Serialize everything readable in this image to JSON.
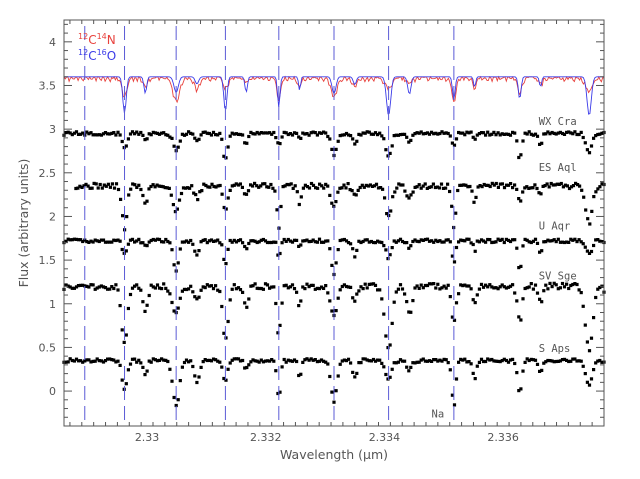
{
  "chart_data": {
    "type": "line",
    "title": "",
    "xlabel": "Wavelength (μm)",
    "ylabel": "Flux (arbitrary units)",
    "xlim": [
      2.3286,
      2.3377
    ],
    "ylim": [
      -0.4,
      4.25
    ],
    "x_ticks": [
      2.33,
      2.332,
      2.334,
      2.336
    ],
    "x_tick_labels": [
      "2.33",
      "2.332",
      "2.334",
      "2.336"
    ],
    "y_ticks": [
      0,
      0.5,
      1,
      1.5,
      2,
      2.5,
      3,
      3.5,
      4
    ],
    "y_tick_labels": [
      "0",
      "0.5",
      "1",
      "1.5",
      "2",
      "2.5",
      "3",
      "3.5",
      "4"
    ],
    "grid": false,
    "reference_lines": [
      2.32895,
      2.32962,
      2.33049,
      2.33132,
      2.33222,
      2.33315,
      2.33407,
      2.33517
    ],
    "legend": {
      "placement": "top-left",
      "entries": [
        {
          "pre": "12",
          "el1": "C",
          "mid": "14",
          "el2": "N",
          "color": "#e8413c"
        },
        {
          "pre": "12",
          "el1": "C",
          "mid": "16",
          "el2": "O",
          "color": "#3a3ae8"
        }
      ]
    },
    "lines": [
      2.32962,
      2.33049,
      2.33132,
      2.33222,
      2.33315,
      2.33407,
      2.33517,
      2.33628,
      2.33745
    ],
    "series": [
      {
        "name": "12C14N",
        "kind": "line",
        "color": "#e8413c",
        "offset": 3.6,
        "start": 2.3286,
        "end": 2.3377,
        "continuum": 3.6,
        "depth": 0.28,
        "width": 6e-05,
        "noise": 0.06,
        "seed": 11
      },
      {
        "name": "12C16O",
        "kind": "line",
        "color": "#3a3ae8",
        "offset": 3.6,
        "start": 2.3286,
        "end": 2.3377,
        "continuum": 3.6,
        "depth": 0.45,
        "width": 4e-05,
        "noise": 0.0,
        "seed": 7
      },
      {
        "name": "WX Cra",
        "kind": "points",
        "color": "#000000",
        "offset": 2.95,
        "start": 2.3286,
        "end": 2.3377,
        "depth": 0.32,
        "width": 5.5e-05,
        "noise": 0.04,
        "seed": 21,
        "label_x": 2.3366,
        "label_y": 3.05
      },
      {
        "name": "ES Aql",
        "kind": "points",
        "color": "#000000",
        "offset": 2.35,
        "start": 2.3288,
        "end": 2.3377,
        "depth": 0.5,
        "width": 6e-05,
        "noise": 0.06,
        "seed": 31,
        "label_x": 2.3366,
        "label_y": 2.52
      },
      {
        "name": "U Aqr",
        "kind": "points",
        "color": "#000000",
        "offset": 1.72,
        "start": 2.3286,
        "end": 2.3377,
        "depth": 0.38,
        "width": 5e-05,
        "noise": 0.04,
        "seed": 41,
        "label_x": 2.3366,
        "label_y": 1.85
      },
      {
        "name": "SV Sge",
        "kind": "points",
        "color": "#000000",
        "offset": 1.2,
        "start": 2.3286,
        "end": 2.3377,
        "depth": 0.72,
        "width": 7e-05,
        "noise": 0.07,
        "seed": 51,
        "label_x": 2.3366,
        "label_y": 1.28
      },
      {
        "name": "S Aps",
        "kind": "points",
        "color": "#000000",
        "offset": 0.35,
        "start": 2.3286,
        "end": 2.3377,
        "depth": 0.55,
        "width": 6e-05,
        "noise": 0.04,
        "seed": 61,
        "label_x": 2.3366,
        "label_y": 0.45
      }
    ],
    "annotations": [
      {
        "text": "Na",
        "x": 2.3349,
        "y": -0.3
      }
    ]
  }
}
